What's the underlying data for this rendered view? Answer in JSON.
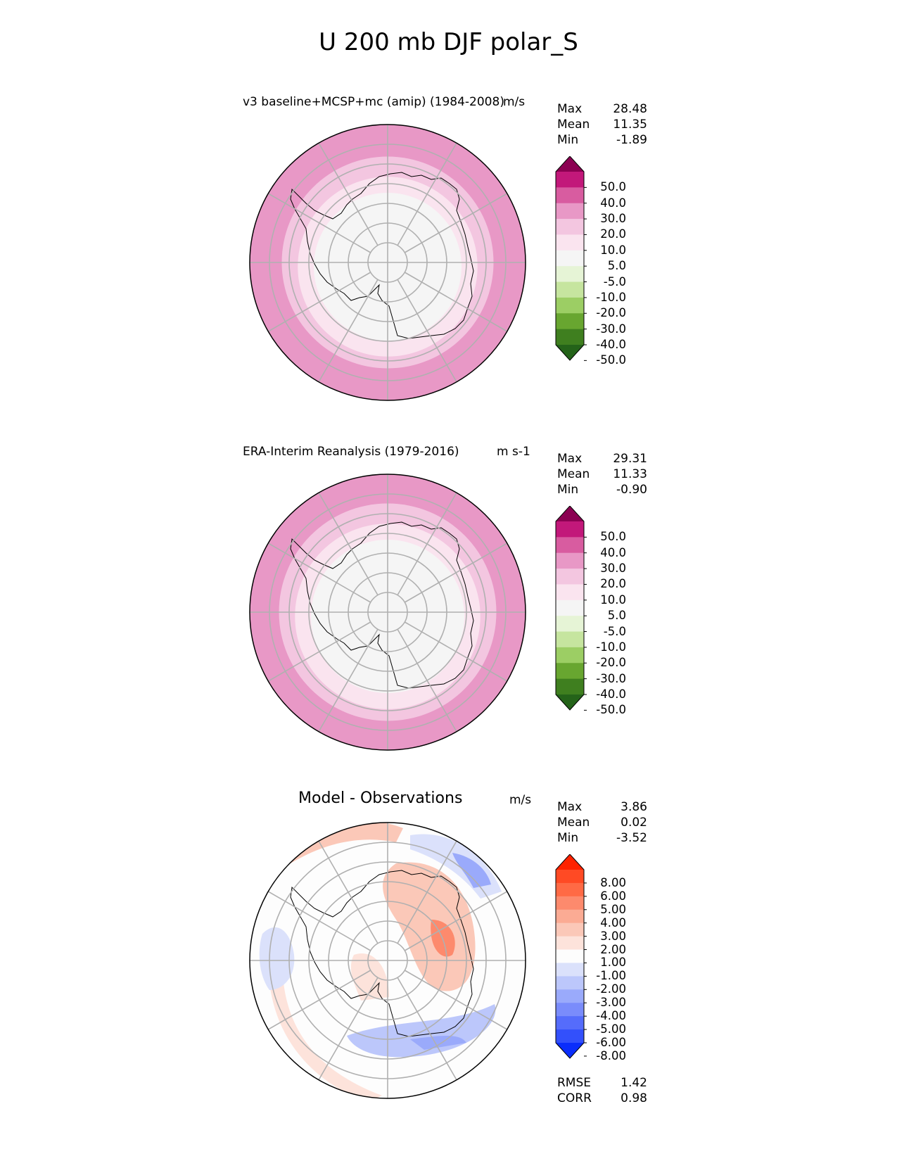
{
  "title": "U 200 mb DJF polar_S",
  "chart_data": [
    {
      "type": "polar_contour_map",
      "title": "v3 baseline+MCSP+mc (amip) (1984-2008)",
      "units": "m/s",
      "stats": {
        "max_label": "Max",
        "max": "28.48",
        "mean_label": "Mean",
        "mean": "11.35",
        "min_label": "Min",
        "min": "-1.89"
      },
      "levels": [
        "50.0",
        "40.0",
        "30.0",
        "20.0",
        "10.0",
        "5.0",
        "-5.0",
        "-10.0",
        "-20.0",
        "-30.0",
        "-40.0",
        "-50.0"
      ],
      "colors": [
        "#8b0052",
        "#c2187a",
        "#d85ca0",
        "#e898c6",
        "#f3c6e0",
        "#fae4ef",
        "#f5f5f5",
        "#e6f4d6",
        "#c6e59f",
        "#9cce64",
        "#68a630",
        "#3f7f1f",
        "#246319"
      ],
      "rings": [
        {
          "value": 20.0,
          "color": "#e898c6"
        },
        {
          "value": 10.0,
          "color": "#f3c6e0"
        },
        {
          "value": 5.0,
          "color": "#fae4ef"
        },
        {
          "value": 0.0,
          "color": "#f5f5f5"
        }
      ]
    },
    {
      "type": "polar_contour_map",
      "title": "ERA-Interim Reanalysis (1979-2016)",
      "units": "m s-1",
      "stats": {
        "max_label": "Max",
        "max": "29.31",
        "mean_label": "Mean",
        "mean": "11.33",
        "min_label": "Min",
        "min": "-0.90"
      },
      "levels": [
        "50.0",
        "40.0",
        "30.0",
        "20.0",
        "10.0",
        "5.0",
        "-5.0",
        "-10.0",
        "-20.0",
        "-30.0",
        "-40.0",
        "-50.0"
      ],
      "colors": [
        "#8b0052",
        "#c2187a",
        "#d85ca0",
        "#e898c6",
        "#f3c6e0",
        "#fae4ef",
        "#f5f5f5",
        "#e6f4d6",
        "#c6e59f",
        "#9cce64",
        "#68a630",
        "#3f7f1f",
        "#246319"
      ],
      "rings": [
        {
          "value": 20.0,
          "color": "#e898c6"
        },
        {
          "value": 10.0,
          "color": "#f3c6e0"
        },
        {
          "value": 5.0,
          "color": "#fae4ef"
        },
        {
          "value": 0.0,
          "color": "#f5f5f5"
        }
      ]
    },
    {
      "type": "polar_contour_map",
      "title": "Model - Observations",
      "units": "m/s",
      "stats": {
        "max_label": "Max",
        "max": "3.86",
        "mean_label": "Mean",
        "mean": "0.02",
        "min_label": "Min",
        "min": "-3.52"
      },
      "levels": [
        "8.00",
        "6.00",
        "5.00",
        "4.00",
        "3.00",
        "2.00",
        "1.00",
        "-1.00",
        "-2.00",
        "-3.00",
        "-4.00",
        "-5.00",
        "-6.00",
        "-8.00"
      ],
      "colors": [
        "#ff2200",
        "#ff4a24",
        "#ff6a45",
        "#fd8a6d",
        "#fbab94",
        "#fbc8b8",
        "#fde3db",
        "#fdfdfd",
        "#dbe1fb",
        "#bcc7fb",
        "#9aaafb",
        "#7a8cfb",
        "#556cfb",
        "#3350fb",
        "#0a2dfb"
      ],
      "rmse_label": "RMSE",
      "rmse": "1.42",
      "corr_label": "CORR",
      "corr": "0.98"
    }
  ]
}
